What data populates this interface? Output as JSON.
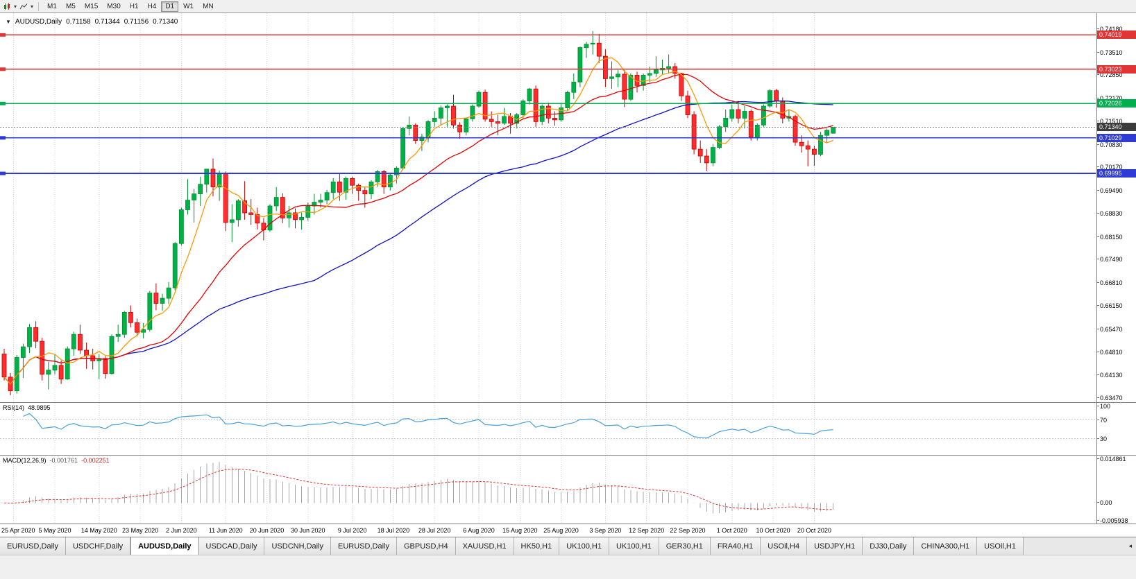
{
  "toolbar": {
    "timeframes": [
      "M1",
      "M5",
      "M15",
      "M30",
      "H1",
      "H4",
      "D1",
      "W1",
      "MN"
    ],
    "active_timeframe": "D1",
    "icons": [
      "candlestick-chart-icon",
      "chevron-down-icon",
      "line-chart-icon",
      "chevron-down-icon"
    ]
  },
  "chart": {
    "symbol_period": "AUDUSD,Daily",
    "open": "0.71158",
    "high": "0.71344",
    "low": "0.71156",
    "close": "0.71340",
    "y_axis": [
      "0.74180",
      "0.73510",
      "0.72850",
      "0.72170",
      "0.71510",
      "0.70830",
      "0.70170",
      "0.69490",
      "0.68830",
      "0.68150",
      "0.67490",
      "0.66810",
      "0.66150",
      "0.65470",
      "0.64810",
      "0.64130",
      "0.63470"
    ],
    "x_axis": [
      {
        "label": "25 Apr 2020",
        "i": 1.5
      },
      {
        "label": "5 May 2020",
        "i": 8
      },
      {
        "label": "14 May 2020",
        "i": 15
      },
      {
        "label": "23 May 2020",
        "i": 21.5
      },
      {
        "label": "2 Jun 2020",
        "i": 28
      },
      {
        "label": "11 Jun 2020",
        "i": 35
      },
      {
        "label": "20 Jun 2020",
        "i": 41.5
      },
      {
        "label": "30 Jun 2020",
        "i": 48
      },
      {
        "label": "9 Jul 2020",
        "i": 55
      },
      {
        "label": "18 Jul 2020",
        "i": 61.5
      },
      {
        "label": "28 Jul 2020",
        "i": 68
      },
      {
        "label": "6 Aug 2020",
        "i": 75
      },
      {
        "label": "15 Aug 2020",
        "i": 81.5
      },
      {
        "label": "25 Aug 2020",
        "i": 88
      },
      {
        "label": "3 Sep 2020",
        "i": 95
      },
      {
        "label": "12 Sep 2020",
        "i": 101.5
      },
      {
        "label": "22 Sep 2020",
        "i": 108
      },
      {
        "label": "1 Oct 2020",
        "i": 115
      },
      {
        "label": "10 Oct 2020",
        "i": 121.5
      },
      {
        "label": "20 Oct 2020",
        "i": 128
      }
    ],
    "hlines": [
      {
        "label": "0.74019",
        "price": 0.74019,
        "color": "#e23434",
        "width": 1.4
      },
      {
        "label": "0.73023",
        "price": 0.73023,
        "color": "#e23434",
        "width": 1.4
      },
      {
        "label": "0.72026",
        "price": 0.72026,
        "color": "#00b050",
        "width": 1.8
      },
      {
        "label": "0.71029",
        "price": 0.71029,
        "color": "#2e3bd7",
        "width": 1.8
      },
      {
        "label": "0.69995",
        "price": 0.69995,
        "color": "#2e3bd7",
        "width": 1.8
      }
    ],
    "current_price": {
      "label": "0.71340",
      "value": 0.7134,
      "color": "#3c3c3c"
    }
  },
  "rsi": {
    "name": "RSI(14)",
    "value": "48.9895",
    "axis_labels": [
      "100",
      "70",
      "30"
    ],
    "levels": [
      70,
      30
    ],
    "color": "#4aa0d8"
  },
  "macd": {
    "name": "MACD(12,26,9)",
    "value_main": "-0.001761",
    "value_signal": "-0.002251",
    "axis_labels": [
      "0.014861",
      "0.00",
      "-0.005938"
    ],
    "hist_color": "#a8a8a8",
    "signal_color": "#e03434"
  },
  "tabs": [
    "EURUSD,Daily",
    "USDCHF,Daily",
    "AUDUSD,Daily",
    "USDCAD,Daily",
    "USDCNH,Daily",
    "EURUSD,Daily",
    "GBPUSD,H4",
    "XAUUSD,H1",
    "HK50,H1",
    "UK100,H1",
    "UK100,H1",
    "GER30,H1",
    "FRA40,H1",
    "USOil,H4",
    "USDJPY,H1",
    "DJ30,Daily",
    "CHINA300,H1",
    "USOil,H1"
  ],
  "active_tab_index": 2,
  "tab_scroll_icon": "◂",
  "chart_data": {
    "type": "candlestick",
    "symbol": "AUDUSD",
    "timeframe": "Daily",
    "price_min": 0.6335,
    "price_max": 0.7465,
    "bar_start": 6,
    "bar_spacing": 9.12,
    "rsi_period": 14,
    "macd_params": [
      12,
      26,
      9
    ],
    "colors": {
      "up": "#00b14a",
      "down": "#ff2d2d",
      "up_stroke": "#00902c",
      "down_stroke": "#c40000"
    },
    "ma": [
      {
        "period": 50,
        "color": "#0f0fc8"
      },
      {
        "period": 20,
        "color": "#e60000"
      },
      {
        "period": 6,
        "color": "#ff9900"
      }
    ],
    "candles": [
      [
        0.6475,
        0.649,
        0.6398,
        0.6408
      ],
      [
        0.6408,
        0.642,
        0.6355,
        0.6368
      ],
      [
        0.6368,
        0.6472,
        0.636,
        0.6465
      ],
      [
        0.6465,
        0.6505,
        0.6405,
        0.6496
      ],
      [
        0.6496,
        0.6562,
        0.6478,
        0.6552
      ],
      [
        0.6552,
        0.657,
        0.6492,
        0.6512
      ],
      [
        0.6512,
        0.6522,
        0.6398,
        0.6416
      ],
      [
        0.6416,
        0.6452,
        0.6372,
        0.6428
      ],
      [
        0.6428,
        0.6476,
        0.6415,
        0.6442
      ],
      [
        0.6442,
        0.6456,
        0.6388,
        0.6402
      ],
      [
        0.6402,
        0.6497,
        0.64,
        0.649
      ],
      [
        0.649,
        0.654,
        0.647,
        0.6532
      ],
      [
        0.6532,
        0.656,
        0.6475,
        0.6486
      ],
      [
        0.6486,
        0.6508,
        0.6432,
        0.647
      ],
      [
        0.647,
        0.649,
        0.643,
        0.6455
      ],
      [
        0.6455,
        0.6475,
        0.6402,
        0.6462
      ],
      [
        0.6462,
        0.6468,
        0.6403,
        0.6418
      ],
      [
        0.6418,
        0.6532,
        0.6415,
        0.6526
      ],
      [
        0.6526,
        0.656,
        0.651,
        0.6532
      ],
      [
        0.6532,
        0.66,
        0.6522,
        0.6596
      ],
      [
        0.6596,
        0.6616,
        0.6552,
        0.6566
      ],
      [
        0.6566,
        0.6578,
        0.6526,
        0.6538
      ],
      [
        0.6538,
        0.6565,
        0.652,
        0.6546
      ],
      [
        0.6546,
        0.6658,
        0.654,
        0.6652
      ],
      [
        0.6652,
        0.668,
        0.6602,
        0.6622
      ],
      [
        0.6622,
        0.665,
        0.6601,
        0.6637
      ],
      [
        0.6637,
        0.6684,
        0.662,
        0.6667
      ],
      [
        0.6667,
        0.68,
        0.666,
        0.6796
      ],
      [
        0.6796,
        0.69,
        0.679,
        0.6894
      ],
      [
        0.6894,
        0.6983,
        0.688,
        0.6922
      ],
      [
        0.6922,
        0.6955,
        0.6857,
        0.694
      ],
      [
        0.694,
        0.699,
        0.6905,
        0.6968
      ],
      [
        0.6968,
        0.7013,
        0.6944,
        0.7012
      ],
      [
        0.7012,
        0.7043,
        0.6933,
        0.696
      ],
      [
        0.696,
        0.7008,
        0.692,
        0.7
      ],
      [
        0.7,
        0.7005,
        0.6832,
        0.6857
      ],
      [
        0.6857,
        0.691,
        0.68,
        0.6865
      ],
      [
        0.6865,
        0.6925,
        0.6845,
        0.692
      ],
      [
        0.692,
        0.6977,
        0.6865,
        0.6885
      ],
      [
        0.6885,
        0.6925,
        0.685,
        0.688
      ],
      [
        0.688,
        0.69,
        0.6837,
        0.6855
      ],
      [
        0.6855,
        0.687,
        0.6805,
        0.6835
      ],
      [
        0.6835,
        0.691,
        0.683,
        0.6905
      ],
      [
        0.6905,
        0.696,
        0.689,
        0.693
      ],
      [
        0.693,
        0.6942,
        0.6855,
        0.687
      ],
      [
        0.687,
        0.6905,
        0.6842,
        0.6885
      ],
      [
        0.6885,
        0.6898,
        0.684,
        0.6865
      ],
      [
        0.6865,
        0.6886,
        0.6836,
        0.6872
      ],
      [
        0.6872,
        0.6915,
        0.6862,
        0.6905
      ],
      [
        0.6905,
        0.694,
        0.688,
        0.6916
      ],
      [
        0.6916,
        0.694,
        0.69,
        0.6922
      ],
      [
        0.6922,
        0.6952,
        0.691,
        0.6944
      ],
      [
        0.6944,
        0.6986,
        0.6925,
        0.6975
      ],
      [
        0.6975,
        0.6998,
        0.692,
        0.6945
      ],
      [
        0.6945,
        0.699,
        0.6923,
        0.6985
      ],
      [
        0.6985,
        0.699,
        0.694,
        0.6965
      ],
      [
        0.6965,
        0.697,
        0.692,
        0.695
      ],
      [
        0.695,
        0.696,
        0.69,
        0.694
      ],
      [
        0.694,
        0.698,
        0.6925,
        0.6975
      ],
      [
        0.6975,
        0.701,
        0.696,
        0.7005
      ],
      [
        0.7005,
        0.701,
        0.694,
        0.696
      ],
      [
        0.696,
        0.7,
        0.695,
        0.6995
      ],
      [
        0.6995,
        0.702,
        0.697,
        0.7015
      ],
      [
        0.7015,
        0.7135,
        0.701,
        0.713
      ],
      [
        0.713,
        0.7165,
        0.711,
        0.714
      ],
      [
        0.714,
        0.7145,
        0.7085,
        0.7095
      ],
      [
        0.7095,
        0.7115,
        0.7065,
        0.7105
      ],
      [
        0.7105,
        0.7155,
        0.709,
        0.715
      ],
      [
        0.715,
        0.718,
        0.7135,
        0.716
      ],
      [
        0.716,
        0.7197,
        0.714,
        0.719
      ],
      [
        0.719,
        0.72,
        0.7135,
        0.7195
      ],
      [
        0.7195,
        0.7228,
        0.713,
        0.714
      ],
      [
        0.714,
        0.7148,
        0.71,
        0.712
      ],
      [
        0.712,
        0.7162,
        0.711,
        0.7158
      ],
      [
        0.7158,
        0.72,
        0.715,
        0.7195
      ],
      [
        0.7195,
        0.724,
        0.719,
        0.7235
      ],
      [
        0.7235,
        0.7243,
        0.715,
        0.7157
      ],
      [
        0.7157,
        0.718,
        0.7135,
        0.715
      ],
      [
        0.715,
        0.717,
        0.711,
        0.7145
      ],
      [
        0.7145,
        0.719,
        0.714,
        0.7165
      ],
      [
        0.7165,
        0.7175,
        0.7115,
        0.7145
      ],
      [
        0.7145,
        0.7175,
        0.713,
        0.717
      ],
      [
        0.717,
        0.7215,
        0.716,
        0.721
      ],
      [
        0.721,
        0.7248,
        0.72,
        0.7245
      ],
      [
        0.7245,
        0.7255,
        0.7135,
        0.715
      ],
      [
        0.715,
        0.72,
        0.714,
        0.7195
      ],
      [
        0.7195,
        0.7205,
        0.7145,
        0.716
      ],
      [
        0.716,
        0.718,
        0.7138,
        0.7155
      ],
      [
        0.7155,
        0.7205,
        0.715,
        0.719
      ],
      [
        0.719,
        0.724,
        0.718,
        0.7235
      ],
      [
        0.7235,
        0.729,
        0.7215,
        0.7265
      ],
      [
        0.7265,
        0.7368,
        0.725,
        0.7365
      ],
      [
        0.7365,
        0.7382,
        0.7335,
        0.7375
      ],
      [
        0.7375,
        0.7413,
        0.7345,
        0.7378
      ],
      [
        0.7378,
        0.7405,
        0.732,
        0.734
      ],
      [
        0.734,
        0.736,
        0.725,
        0.7275
      ],
      [
        0.7275,
        0.7325,
        0.7245,
        0.728
      ],
      [
        0.728,
        0.73,
        0.725,
        0.7288
      ],
      [
        0.7288,
        0.73,
        0.7192,
        0.7215
      ],
      [
        0.7215,
        0.729,
        0.721,
        0.7285
      ],
      [
        0.7285,
        0.7295,
        0.7235,
        0.7255
      ],
      [
        0.7255,
        0.729,
        0.724,
        0.7285
      ],
      [
        0.7285,
        0.731,
        0.7265,
        0.729
      ],
      [
        0.729,
        0.734,
        0.728,
        0.73
      ],
      [
        0.73,
        0.733,
        0.7285,
        0.7305
      ],
      [
        0.7305,
        0.7345,
        0.729,
        0.731
      ],
      [
        0.731,
        0.732,
        0.7275,
        0.729
      ],
      [
        0.729,
        0.7292,
        0.721,
        0.7225
      ],
      [
        0.7225,
        0.724,
        0.716,
        0.717
      ],
      [
        0.717,
        0.718,
        0.7055,
        0.707
      ],
      [
        0.707,
        0.7095,
        0.703,
        0.705
      ],
      [
        0.705,
        0.707,
        0.7006,
        0.703
      ],
      [
        0.703,
        0.7085,
        0.702,
        0.7075
      ],
      [
        0.7075,
        0.714,
        0.707,
        0.7135
      ],
      [
        0.7135,
        0.7185,
        0.712,
        0.716
      ],
      [
        0.716,
        0.72,
        0.715,
        0.7185
      ],
      [
        0.7185,
        0.721,
        0.7145,
        0.716
      ],
      [
        0.716,
        0.7195,
        0.713,
        0.718
      ],
      [
        0.718,
        0.7185,
        0.7095,
        0.7105
      ],
      [
        0.7105,
        0.7145,
        0.7095,
        0.714
      ],
      [
        0.714,
        0.72,
        0.7135,
        0.7195
      ],
      [
        0.7195,
        0.7245,
        0.719,
        0.724
      ],
      [
        0.724,
        0.7245,
        0.719,
        0.721
      ],
      [
        0.721,
        0.722,
        0.7145,
        0.716
      ],
      [
        0.716,
        0.7185,
        0.715,
        0.7165
      ],
      [
        0.7165,
        0.717,
        0.708,
        0.709
      ],
      [
        0.709,
        0.711,
        0.706,
        0.708
      ],
      [
        0.708,
        0.7095,
        0.702,
        0.707
      ],
      [
        0.707,
        0.708,
        0.7021,
        0.7055
      ],
      [
        0.7055,
        0.712,
        0.705,
        0.711
      ],
      [
        0.711,
        0.713,
        0.709,
        0.7125
      ],
      [
        0.7116,
        0.7134,
        0.7116,
        0.7134
      ]
    ]
  }
}
